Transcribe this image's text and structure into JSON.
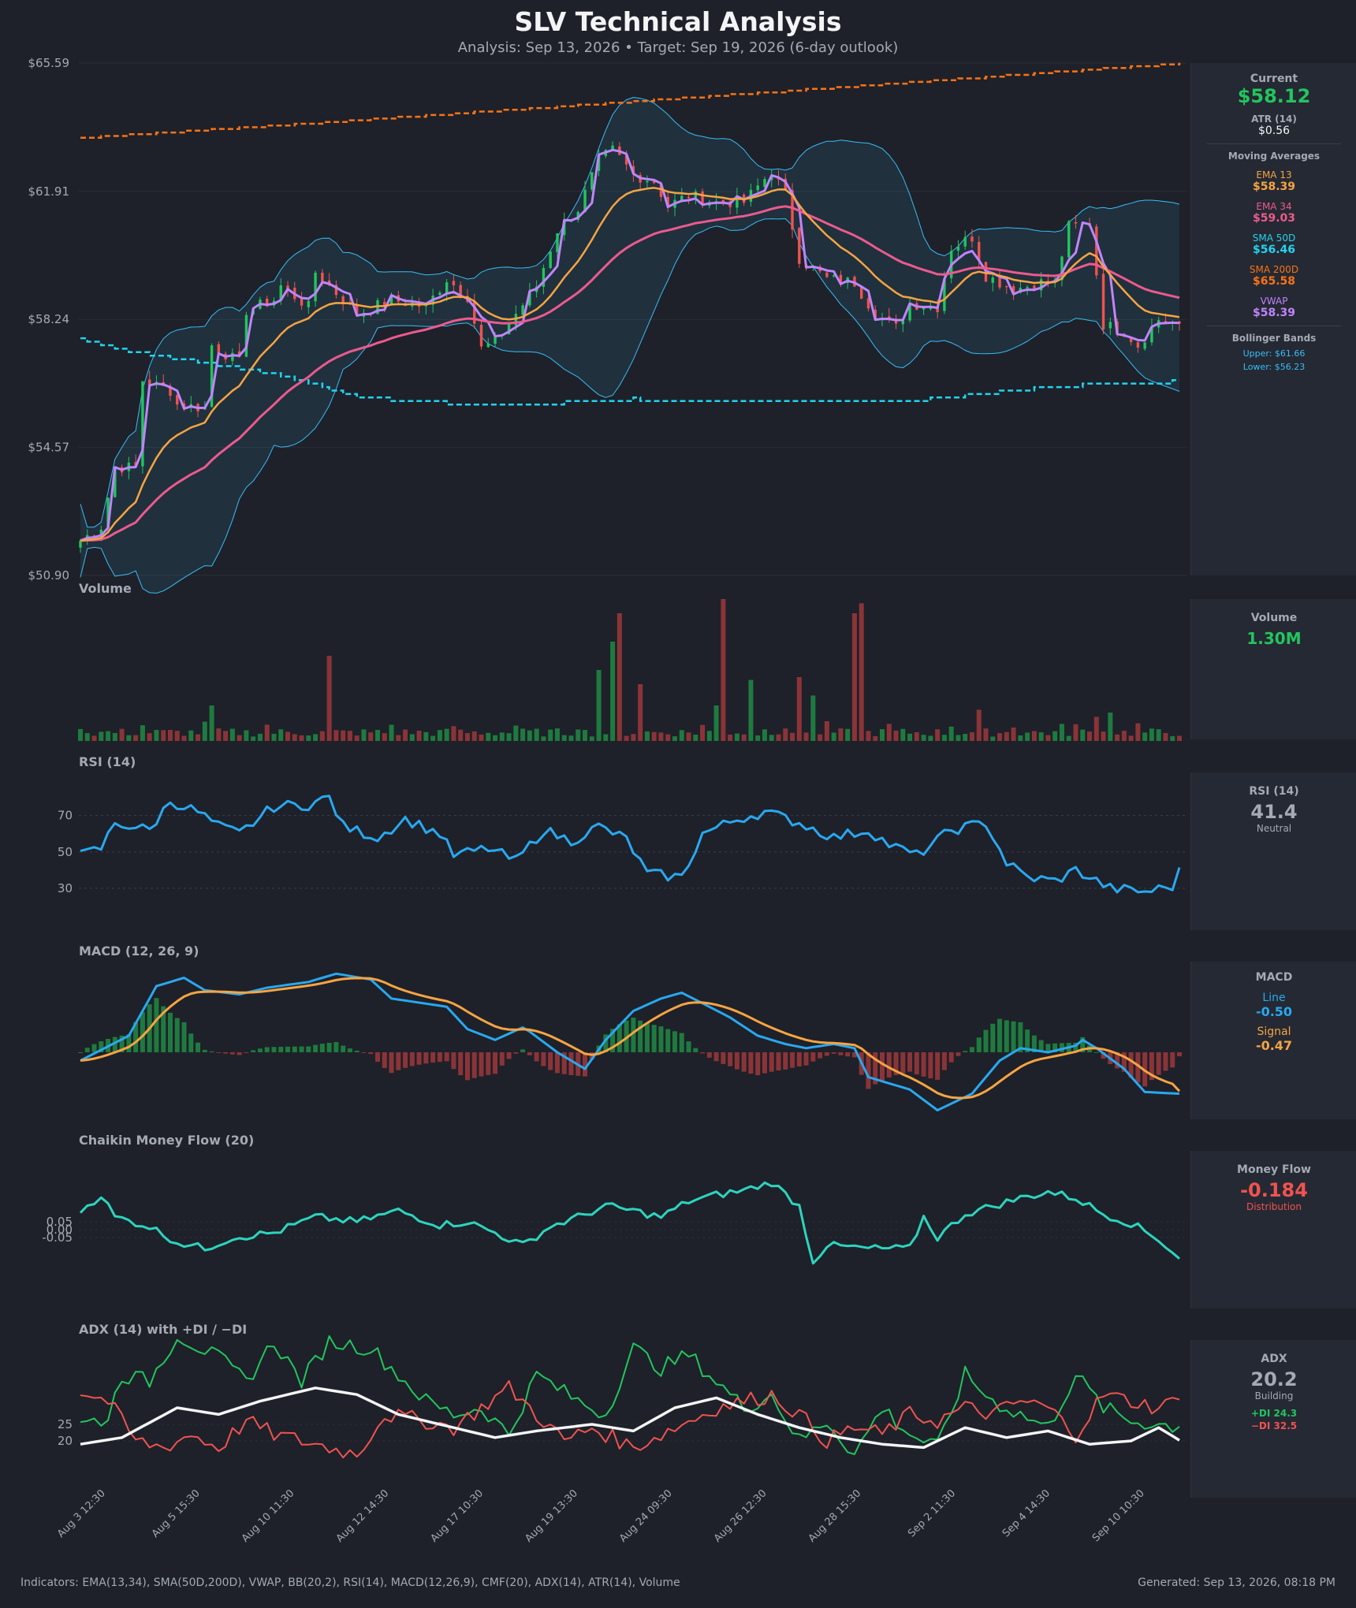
{
  "header": {
    "title": "SLV Technical Analysis",
    "subtitle": "Analysis: Sep 13, 2026  •  Target: Sep 19, 2026  (6-day outlook)"
  },
  "colors": {
    "background": "#1e2129",
    "up": "#22c55e",
    "down": "#ef5350",
    "ema13": "#f6a443",
    "ema34": "#ec5a8e",
    "sma50": "#22d3ee",
    "sma200": "#f97316",
    "vwap": "#c084fc",
    "bollinger": "#38bdf8",
    "rsi": "#29a8f0",
    "macd_line": "#29a8f0",
    "macd_signal": "#f6a443",
    "cmf": "#2dd4bf",
    "adx": "#f3f4f6",
    "plus_di": "#22c55e",
    "minus_di": "#ef5350"
  },
  "chart_data": [
    {
      "type": "candlestick",
      "panel": "price",
      "ytick_labels": [
        "$65.59",
        "$61.91",
        "$58.24",
        "$54.57",
        "$50.90"
      ],
      "ylim": [
        50.9,
        65.59
      ],
      "overlays": [
        "EMA 13",
        "EMA 34",
        "SMA 50D",
        "SMA 200D",
        "VWAP",
        "Bollinger Bands (20,2)"
      ],
      "x_labels": [
        "Aug 3 12:30",
        "Aug 5 15:30",
        "Aug 10 11:30",
        "Aug 12 14:30",
        "Aug 17 10:30",
        "Aug 19 13:30",
        "Aug 24 09:30",
        "Aug 26 12:30",
        "Aug 28 15:30",
        "Sep 2 11:30",
        "Sep 4 14:30",
        "Sep 10 10:30"
      ],
      "close_anchors": [
        [
          0,
          51.9
        ],
        [
          3,
          52.3
        ],
        [
          5,
          54.0
        ],
        [
          8,
          54.0
        ],
        [
          9,
          56.5
        ],
        [
          13,
          56.2
        ],
        [
          14,
          55.8
        ],
        [
          18,
          55.7
        ],
        [
          19,
          57.5
        ],
        [
          23,
          57.0
        ],
        [
          24,
          58.5
        ],
        [
          28,
          58.8
        ],
        [
          29,
          59.2
        ],
        [
          33,
          58.6
        ],
        [
          34,
          59.6
        ],
        [
          40,
          58.4
        ],
        [
          45,
          58.8
        ],
        [
          50,
          58.6
        ],
        [
          53,
          59.4
        ],
        [
          56,
          58.9
        ],
        [
          58,
          57.4
        ],
        [
          60,
          57.6
        ],
        [
          63,
          58.4
        ],
        [
          66,
          59.2
        ],
        [
          69,
          60.8
        ],
        [
          72,
          61.4
        ],
        [
          75,
          62.8
        ],
        [
          77,
          63.1
        ],
        [
          80,
          62.4
        ],
        [
          83,
          62.2
        ],
        [
          85,
          61.5
        ],
        [
          88,
          61.8
        ],
        [
          92,
          61.6
        ],
        [
          96,
          61.6
        ],
        [
          100,
          62.5
        ],
        [
          102,
          61.8
        ],
        [
          104,
          60.0
        ],
        [
          108,
          59.4
        ],
        [
          112,
          59.3
        ],
        [
          115,
          58.4
        ],
        [
          118,
          58.0
        ],
        [
          120,
          58.7
        ],
        [
          124,
          58.6
        ],
        [
          126,
          60.3
        ],
        [
          129,
          60.6
        ],
        [
          131,
          59.5
        ],
        [
          135,
          59.1
        ],
        [
          139,
          59.3
        ],
        [
          141,
          59.3
        ],
        [
          143,
          60.9
        ],
        [
          146,
          61.0
        ],
        [
          148,
          58.1
        ],
        [
          151,
          57.9
        ],
        [
          153,
          57.5
        ],
        [
          156,
          58.24
        ],
        [
          159,
          58.12
        ]
      ],
      "current": 58.12
    },
    {
      "type": "bar",
      "panel": "volume",
      "title": "Volume",
      "current_label": "1.30M"
    },
    {
      "type": "line",
      "panel": "rsi",
      "title": "RSI (14)",
      "ytick_labels": [
        "70",
        "50",
        "30"
      ],
      "ylim": [
        20,
        85
      ],
      "current": 41.4
    },
    {
      "type": "line",
      "panel": "macd",
      "title": "MACD (12, 26, 9)",
      "series": [
        {
          "name": "Line",
          "current": -0.5
        },
        {
          "name": "Signal",
          "current": -0.47
        }
      ]
    },
    {
      "type": "line",
      "panel": "cmf",
      "title": "Chaikin Money Flow (20)",
      "ytick_labels": [
        "0.05",
        "0.00",
        "-0.05"
      ],
      "current": -0.184
    },
    {
      "type": "line",
      "panel": "adx",
      "title": "ADX (14) with +DI / −DI",
      "ytick_labels": [
        "25",
        "20"
      ],
      "series": [
        {
          "name": "ADX",
          "current": 20.2
        },
        {
          "name": "+DI",
          "current": 24.3
        },
        {
          "name": "−DI",
          "current": 32.5
        }
      ]
    }
  ],
  "sidebar": {
    "price": {
      "current_label": "Current",
      "current_value": "$58.12",
      "atr_label": "ATR (14)",
      "atr_value": "$0.56",
      "ma_heading": "Moving Averages",
      "ema13_label": "EMA 13",
      "ema13_value": "$58.39",
      "ema34_label": "EMA 34",
      "ema34_value": "$59.03",
      "sma50_label": "SMA 50D",
      "sma50_value": "$56.46",
      "sma200_label": "SMA 200D",
      "sma200_value": "$65.58",
      "vwap_label": "VWAP",
      "vwap_value": "$58.39",
      "bb_heading": "Bollinger Bands",
      "bb_upper": "Upper: $61.66",
      "bb_lower": "Lower: $56.23"
    },
    "volume": {
      "label": "Volume",
      "value": "1.30M"
    },
    "rsi": {
      "label": "RSI (14)",
      "value": "41.4",
      "status": "Neutral"
    },
    "macd": {
      "label": "MACD",
      "line_label": "Line",
      "line_value": "-0.50",
      "signal_label": "Signal",
      "signal_value": "-0.47"
    },
    "cmf": {
      "label": "Money Flow",
      "value": "-0.184",
      "status": "Distribution"
    },
    "adx": {
      "label": "ADX",
      "value": "20.2",
      "status": "Building",
      "plus_di": "+DI 24.3",
      "minus_di": "−DI 32.5"
    }
  },
  "footer": {
    "indicators": "Indicators: EMA(13,34), SMA(50D,200D), VWAP, BB(20,2), RSI(14), MACD(12,26,9), CMF(20), ADX(14), ATR(14), Volume",
    "generated": "Generated: Sep 13, 2026, 08:18 PM"
  }
}
